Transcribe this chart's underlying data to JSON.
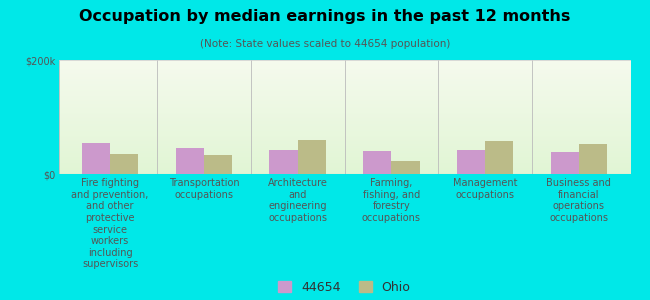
{
  "title": "Occupation by median earnings in the past 12 months",
  "subtitle": "(Note: State values scaled to 44654 population)",
  "background_color": "#00e8e8",
  "ylim": [
    0,
    200000
  ],
  "ytick_labels": [
    "$0",
    "$200k"
  ],
  "bar_width": 0.3,
  "bar_color_44654": "#cc99cc",
  "bar_color_ohio": "#bbbb88",
  "categories": [
    "Fire fighting\nand prevention,\nand other\nprotective\nservice\nworkers\nincluding\nsupervisors",
    "Transportation\noccupations",
    "Architecture\nand\nengineering\noccupations",
    "Farming,\nfishing, and\nforestry\noccupations",
    "Management\noccupations",
    "Business and\nfinancial\noperations\noccupations"
  ],
  "values_44654": [
    55000,
    45000,
    42000,
    40000,
    42000,
    38000
  ],
  "values_ohio": [
    35000,
    33000,
    60000,
    22000,
    58000,
    52000
  ],
  "legend_label_44654": "44654",
  "legend_label_ohio": "Ohio",
  "title_fontsize": 11.5,
  "subtitle_fontsize": 7.5,
  "tick_fontsize": 7,
  "legend_fontsize": 9
}
